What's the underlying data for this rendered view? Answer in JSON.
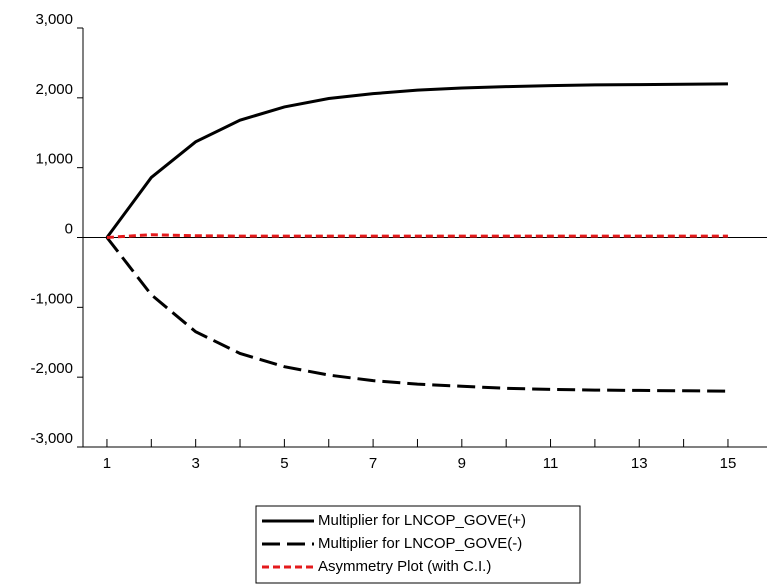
{
  "chart_data": {
    "type": "line",
    "x": [
      1,
      2,
      3,
      4,
      5,
      6,
      7,
      8,
      9,
      10,
      11,
      12,
      13,
      14,
      15
    ],
    "series": [
      {
        "name": "Multiplier for LNCOP_GOVE(+)",
        "color": "#000000",
        "dash": "solid",
        "values": [
          0,
          860,
          1370,
          1680,
          1870,
          1990,
          2060,
          2110,
          2140,
          2160,
          2175,
          2185,
          2190,
          2195,
          2200
        ]
      },
      {
        "name": "Multiplier for LNCOP_GOVE(-)",
        "color": "#000000",
        "dash": "long",
        "values": [
          0,
          -820,
          -1350,
          -1660,
          -1850,
          -1970,
          -2050,
          -2100,
          -2130,
          -2160,
          -2175,
          -2185,
          -2190,
          -2195,
          -2200
        ]
      },
      {
        "name": "Asymmetry Plot (with C.I.)",
        "color": "#e41a1c",
        "dash": "short",
        "values": [
          0,
          40,
          25,
          20,
          20,
          20,
          20,
          20,
          20,
          20,
          20,
          20,
          20,
          20,
          20
        ]
      }
    ],
    "xlim": [
      0.46,
      15.88
    ],
    "xticks": [
      1,
      3,
      5,
      7,
      9,
      11,
      13,
      15
    ],
    "ylim": [
      -3000,
      3000
    ],
    "yticks": [
      {
        "value": -3000,
        "label": "-3,000"
      },
      {
        "value": -2000,
        "label": "-2,000"
      },
      {
        "value": -1000,
        "label": "-1,000"
      },
      0,
      {
        "value": 1000,
        "label": "1,000"
      },
      {
        "value": 2000,
        "label": "2,000"
      },
      {
        "value": 3000,
        "label": "3,000"
      }
    ],
    "legend": "bottom"
  }
}
